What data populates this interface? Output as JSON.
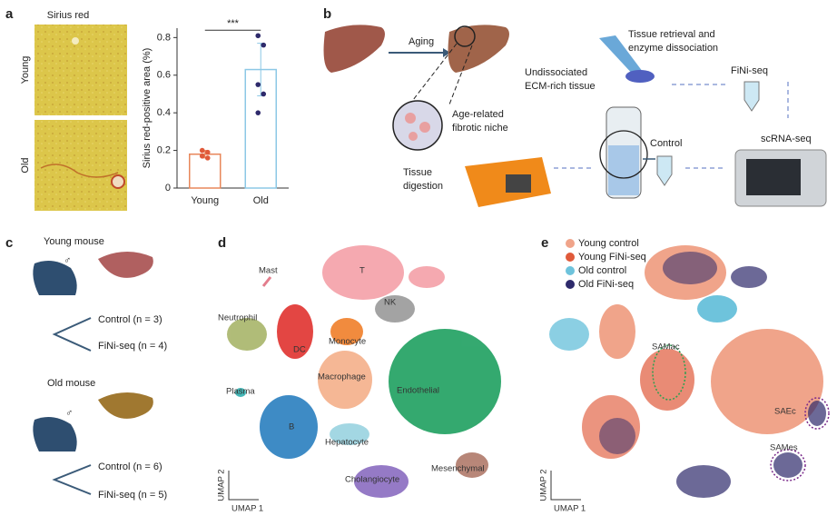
{
  "panel_letters": [
    "a",
    "b",
    "c",
    "d",
    "e"
  ],
  "panel_a": {
    "image_title": "Sirius red",
    "row_labels": [
      "Young",
      "Old"
    ]
  },
  "chart_data": {
    "type": "bar",
    "y_label": "Sirius red-positive area (%)",
    "annotation": "***",
    "categories": [
      "Young",
      "Old"
    ],
    "values": [
      0.18,
      0.63
    ],
    "errors": [
      0.02,
      0.14
    ],
    "points": [
      [
        0.2,
        0.19,
        0.17,
        0.16
      ],
      [
        0.81,
        0.76,
        0.55,
        0.5,
        0.4
      ]
    ],
    "colors": [
      "#e8875a",
      "#8cc8e6"
    ],
    "point_colors": [
      "#e05a3a",
      "#2e2a6b"
    ],
    "ylim": [
      0,
      0.85
    ],
    "yticks": [
      0,
      0.2,
      0.4,
      0.6,
      0.8
    ]
  },
  "panel_b": {
    "aging": "Aging",
    "niche": [
      "Age-related",
      "fibrotic niche"
    ],
    "digestion": [
      "Tissue",
      "digestion"
    ],
    "undissociated": [
      "Undissociated",
      "ECM-rich tissue"
    ],
    "retrieval": [
      "Tissue retrieval and",
      "enzyme dissociation"
    ],
    "finiseq": "FiNi-seq",
    "control": "Control",
    "scrnaseq": "scRNA-seq"
  },
  "panel_c": {
    "young": "Young mouse",
    "young_groups": [
      "Control (n = 3)",
      "FiNi-seq (n = 4)"
    ],
    "old": "Old mouse",
    "old_groups": [
      "Control (n = 6)",
      "FiNi-seq (n = 5)"
    ],
    "sex": "♂"
  },
  "panel_d": {
    "clusters": [
      "Mast",
      "T",
      "NK",
      "Neutrophil",
      "DC",
      "Monocyte",
      "Macrophage",
      "Endothelial",
      "Plasma",
      "B",
      "Hepatocyte",
      "Cholangiocyte",
      "Mesenchymal"
    ],
    "x_axis": "UMAP 1",
    "y_axis": "UMAP 2"
  },
  "panel_e": {
    "legend": [
      {
        "name": "Young control",
        "color": "#f0a48a"
      },
      {
        "name": "Young FiNi-seq",
        "color": "#e05a3a"
      },
      {
        "name": "Old control",
        "color": "#6ec3dc"
      },
      {
        "name": "Old FiNi-seq",
        "color": "#2e2a6b"
      }
    ],
    "regions": [
      "SAMac",
      "SAEc",
      "SAMes"
    ],
    "x_axis": "UMAP 1",
    "y_axis": "UMAP 2"
  }
}
